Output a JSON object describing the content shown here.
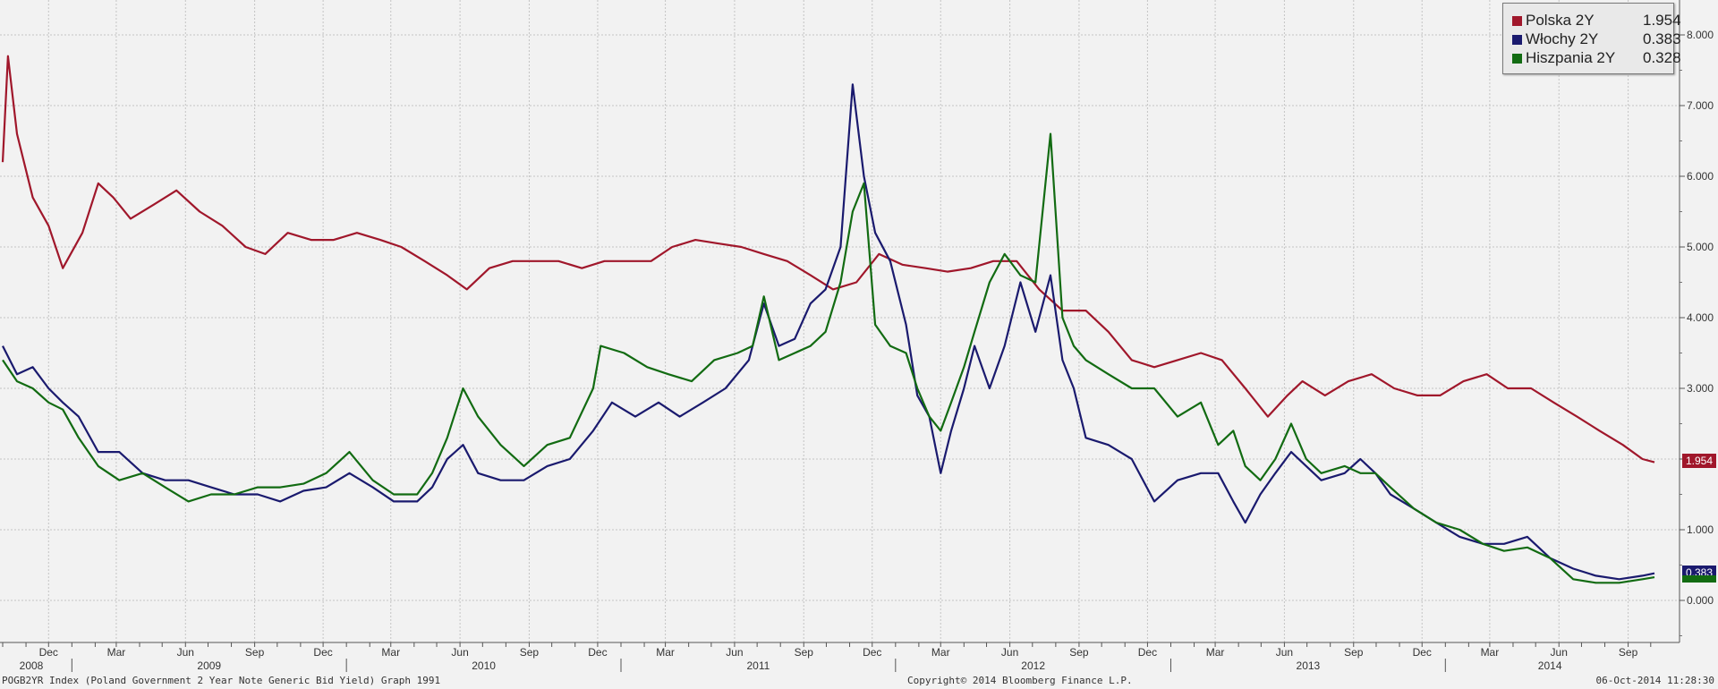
{
  "chart_data": {
    "type": "line",
    "ylim": [
      -0.6,
      8.3
    ],
    "y_ticks": [
      "0.000",
      "1.000",
      "2.000",
      "3.000",
      "4.000",
      "5.000",
      "6.000",
      "7.000",
      "8.000"
    ],
    "x_month_labels": [
      "Dec",
      "Mar",
      "Jun",
      "Sep",
      "Dec",
      "Mar",
      "Jun",
      "Sep",
      "Dec",
      "Mar",
      "Jun",
      "Sep",
      "Dec",
      "Mar",
      "Jun",
      "Sep",
      "Dec",
      "Mar",
      "Jun",
      "Sep",
      "Dec",
      "Mar",
      "Jun",
      "Sep"
    ],
    "x_year_labels": [
      "2008",
      "2009",
      "2010",
      "2011",
      "2012",
      "2013",
      "2014"
    ],
    "grid": true,
    "legend_position": "top-right",
    "series": [
      {
        "name": "Polska 2Y",
        "last": "1.954",
        "color": "#a0172b",
        "points": [
          [
            "2008-10-01",
            6.2
          ],
          [
            "2008-10-08",
            7.7
          ],
          [
            "2008-10-20",
            6.6
          ],
          [
            "2008-11-10",
            5.7
          ],
          [
            "2008-12-01",
            5.3
          ],
          [
            "2008-12-20",
            4.7
          ],
          [
            "2009-01-15",
            5.2
          ],
          [
            "2009-02-05",
            5.9
          ],
          [
            "2009-02-25",
            5.7
          ],
          [
            "2009-03-20",
            5.4
          ],
          [
            "2009-04-20",
            5.6
          ],
          [
            "2009-05-20",
            5.8
          ],
          [
            "2009-06-20",
            5.5
          ],
          [
            "2009-07-20",
            5.3
          ],
          [
            "2009-08-20",
            5.0
          ],
          [
            "2009-09-15",
            4.9
          ],
          [
            "2009-10-15",
            5.2
          ],
          [
            "2009-11-15",
            5.1
          ],
          [
            "2009-12-15",
            5.1
          ],
          [
            "2010-01-15",
            5.2
          ],
          [
            "2010-02-15",
            5.1
          ],
          [
            "2010-03-15",
            5.0
          ],
          [
            "2010-04-15",
            4.8
          ],
          [
            "2010-05-15",
            4.6
          ],
          [
            "2010-06-10",
            4.4
          ],
          [
            "2010-07-10",
            4.7
          ],
          [
            "2010-08-10",
            4.8
          ],
          [
            "2010-09-10",
            4.8
          ],
          [
            "2010-10-10",
            4.8
          ],
          [
            "2010-11-10",
            4.7
          ],
          [
            "2010-12-10",
            4.8
          ],
          [
            "2011-01-10",
            4.8
          ],
          [
            "2011-02-10",
            4.8
          ],
          [
            "2011-03-10",
            5.0
          ],
          [
            "2011-04-10",
            5.1
          ],
          [
            "2011-05-10",
            5.05
          ],
          [
            "2011-06-10",
            5.0
          ],
          [
            "2011-07-10",
            4.9
          ],
          [
            "2011-08-10",
            4.8
          ],
          [
            "2011-09-10",
            4.6
          ],
          [
            "2011-10-10",
            4.4
          ],
          [
            "2011-11-10",
            4.5
          ],
          [
            "2011-12-10",
            4.9
          ],
          [
            "2012-01-10",
            4.75
          ],
          [
            "2012-02-10",
            4.7
          ],
          [
            "2012-03-10",
            4.65
          ],
          [
            "2012-04-10",
            4.7
          ],
          [
            "2012-05-10",
            4.8
          ],
          [
            "2012-06-10",
            4.8
          ],
          [
            "2012-07-10",
            4.4
          ],
          [
            "2012-08-10",
            4.1
          ],
          [
            "2012-09-10",
            4.1
          ],
          [
            "2012-10-10",
            3.8
          ],
          [
            "2012-11-10",
            3.4
          ],
          [
            "2012-12-10",
            3.3
          ],
          [
            "2013-01-10",
            3.4
          ],
          [
            "2013-02-10",
            3.5
          ],
          [
            "2013-03-10",
            3.4
          ],
          [
            "2013-04-10",
            3.0
          ],
          [
            "2013-05-10",
            2.6
          ],
          [
            "2013-06-05",
            2.9
          ],
          [
            "2013-06-25",
            3.1
          ],
          [
            "2013-07-25",
            2.9
          ],
          [
            "2013-08-25",
            3.1
          ],
          [
            "2013-09-25",
            3.2
          ],
          [
            "2013-10-25",
            3.0
          ],
          [
            "2013-11-25",
            2.9
          ],
          [
            "2013-12-25",
            2.9
          ],
          [
            "2014-01-25",
            3.1
          ],
          [
            "2014-02-25",
            3.2
          ],
          [
            "2014-03-25",
            3.0
          ],
          [
            "2014-04-25",
            3.0
          ],
          [
            "2014-05-25",
            2.8
          ],
          [
            "2014-06-25",
            2.6
          ],
          [
            "2014-07-25",
            2.4
          ],
          [
            "2014-08-25",
            2.2
          ],
          [
            "2014-09-20",
            2.0
          ],
          [
            "2014-10-06",
            1.954
          ]
        ]
      },
      {
        "name": "Włochy 2Y",
        "last": "0.383",
        "color": "#1a1a6e",
        "points": [
          [
            "2008-10-01",
            3.6
          ],
          [
            "2008-10-20",
            3.2
          ],
          [
            "2008-11-10",
            3.3
          ],
          [
            "2008-12-01",
            3.0
          ],
          [
            "2008-12-20",
            2.8
          ],
          [
            "2009-01-10",
            2.6
          ],
          [
            "2009-02-05",
            2.1
          ],
          [
            "2009-03-05",
            2.1
          ],
          [
            "2009-04-05",
            1.8
          ],
          [
            "2009-05-05",
            1.7
          ],
          [
            "2009-06-05",
            1.7
          ],
          [
            "2009-07-05",
            1.6
          ],
          [
            "2009-08-05",
            1.5
          ],
          [
            "2009-09-05",
            1.5
          ],
          [
            "2009-10-05",
            1.4
          ],
          [
            "2009-11-05",
            1.55
          ],
          [
            "2009-12-05",
            1.6
          ],
          [
            "2010-01-05",
            1.8
          ],
          [
            "2010-02-05",
            1.6
          ],
          [
            "2010-03-05",
            1.4
          ],
          [
            "2010-04-05",
            1.4
          ],
          [
            "2010-04-25",
            1.6
          ],
          [
            "2010-05-15",
            2.0
          ],
          [
            "2010-06-05",
            2.2
          ],
          [
            "2010-06-25",
            1.8
          ],
          [
            "2010-07-25",
            1.7
          ],
          [
            "2010-08-25",
            1.7
          ],
          [
            "2010-09-25",
            1.9
          ],
          [
            "2010-10-25",
            2.0
          ],
          [
            "2010-11-25",
            2.4
          ],
          [
            "2010-12-20",
            2.8
          ],
          [
            "2011-01-20",
            2.6
          ],
          [
            "2011-02-20",
            2.8
          ],
          [
            "2011-03-20",
            2.6
          ],
          [
            "2011-04-20",
            2.8
          ],
          [
            "2011-05-20",
            3.0
          ],
          [
            "2011-06-20",
            3.4
          ],
          [
            "2011-07-10",
            4.2
          ],
          [
            "2011-07-30",
            3.6
          ],
          [
            "2011-08-20",
            3.7
          ],
          [
            "2011-09-10",
            4.2
          ],
          [
            "2011-09-30",
            4.4
          ],
          [
            "2011-10-20",
            5.0
          ],
          [
            "2011-11-05",
            7.3
          ],
          [
            "2011-11-20",
            6.0
          ],
          [
            "2011-12-05",
            5.2
          ],
          [
            "2011-12-25",
            4.8
          ],
          [
            "2012-01-15",
            3.9
          ],
          [
            "2012-01-30",
            2.9
          ],
          [
            "2012-02-15",
            2.6
          ],
          [
            "2012-03-01",
            1.8
          ],
          [
            "2012-03-15",
            2.4
          ],
          [
            "2012-04-01",
            3.0
          ],
          [
            "2012-04-15",
            3.6
          ],
          [
            "2012-05-05",
            3.0
          ],
          [
            "2012-05-25",
            3.6
          ],
          [
            "2012-06-15",
            4.5
          ],
          [
            "2012-07-05",
            3.8
          ],
          [
            "2012-07-25",
            4.6
          ],
          [
            "2012-08-10",
            3.4
          ],
          [
            "2012-08-25",
            3.0
          ],
          [
            "2012-09-10",
            2.3
          ],
          [
            "2012-10-10",
            2.2
          ],
          [
            "2012-11-10",
            2.0
          ],
          [
            "2012-12-10",
            1.4
          ],
          [
            "2013-01-10",
            1.7
          ],
          [
            "2013-02-10",
            1.8
          ],
          [
            "2013-03-05",
            1.8
          ],
          [
            "2013-03-25",
            1.4
          ],
          [
            "2013-04-10",
            1.1
          ],
          [
            "2013-04-30",
            1.5
          ],
          [
            "2013-05-20",
            1.8
          ],
          [
            "2013-06-10",
            2.1
          ],
          [
            "2013-06-30",
            1.9
          ],
          [
            "2013-07-20",
            1.7
          ],
          [
            "2013-08-20",
            1.8
          ],
          [
            "2013-09-10",
            2.0
          ],
          [
            "2013-09-30",
            1.8
          ],
          [
            "2013-10-20",
            1.5
          ],
          [
            "2013-11-20",
            1.3
          ],
          [
            "2013-12-20",
            1.1
          ],
          [
            "2014-01-20",
            0.9
          ],
          [
            "2014-02-20",
            0.8
          ],
          [
            "2014-03-20",
            0.8
          ],
          [
            "2014-04-20",
            0.9
          ],
          [
            "2014-05-20",
            0.6
          ],
          [
            "2014-06-20",
            0.45
          ],
          [
            "2014-07-20",
            0.35
          ],
          [
            "2014-08-20",
            0.3
          ],
          [
            "2014-09-20",
            0.35
          ],
          [
            "2014-10-06",
            0.383
          ]
        ]
      },
      {
        "name": "Hiszpania 2Y",
        "last": "0.328",
        "color": "#126b12",
        "points": [
          [
            "2008-10-01",
            3.4
          ],
          [
            "2008-10-20",
            3.1
          ],
          [
            "2008-11-10",
            3.0
          ],
          [
            "2008-12-01",
            2.8
          ],
          [
            "2008-12-20",
            2.7
          ],
          [
            "2009-01-10",
            2.3
          ],
          [
            "2009-02-05",
            1.9
          ],
          [
            "2009-03-05",
            1.7
          ],
          [
            "2009-04-05",
            1.8
          ],
          [
            "2009-05-05",
            1.6
          ],
          [
            "2009-06-05",
            1.4
          ],
          [
            "2009-07-05",
            1.5
          ],
          [
            "2009-08-05",
            1.5
          ],
          [
            "2009-09-05",
            1.6
          ],
          [
            "2009-10-05",
            1.6
          ],
          [
            "2009-11-05",
            1.65
          ],
          [
            "2009-12-05",
            1.8
          ],
          [
            "2010-01-05",
            2.1
          ],
          [
            "2010-02-05",
            1.7
          ],
          [
            "2010-03-05",
            1.5
          ],
          [
            "2010-04-05",
            1.5
          ],
          [
            "2010-04-25",
            1.8
          ],
          [
            "2010-05-15",
            2.3
          ],
          [
            "2010-06-05",
            3.0
          ],
          [
            "2010-06-25",
            2.6
          ],
          [
            "2010-07-25",
            2.2
          ],
          [
            "2010-08-25",
            1.9
          ],
          [
            "2010-09-25",
            2.2
          ],
          [
            "2010-10-25",
            2.3
          ],
          [
            "2010-11-25",
            3.0
          ],
          [
            "2010-12-05",
            3.6
          ],
          [
            "2011-01-05",
            3.5
          ],
          [
            "2011-02-05",
            3.3
          ],
          [
            "2011-03-05",
            3.2
          ],
          [
            "2011-04-05",
            3.1
          ],
          [
            "2011-05-05",
            3.4
          ],
          [
            "2011-06-05",
            3.5
          ],
          [
            "2011-06-25",
            3.6
          ],
          [
            "2011-07-10",
            4.3
          ],
          [
            "2011-07-30",
            3.4
          ],
          [
            "2011-08-20",
            3.5
          ],
          [
            "2011-09-10",
            3.6
          ],
          [
            "2011-09-30",
            3.8
          ],
          [
            "2011-10-20",
            4.5
          ],
          [
            "2011-11-05",
            5.5
          ],
          [
            "2011-11-20",
            5.9
          ],
          [
            "2011-12-05",
            3.9
          ],
          [
            "2011-12-25",
            3.6
          ],
          [
            "2012-01-15",
            3.5
          ],
          [
            "2012-01-30",
            3.0
          ],
          [
            "2012-02-15",
            2.6
          ],
          [
            "2012-03-01",
            2.4
          ],
          [
            "2012-03-15",
            2.8
          ],
          [
            "2012-04-01",
            3.3
          ],
          [
            "2012-04-15",
            3.8
          ],
          [
            "2012-05-05",
            4.5
          ],
          [
            "2012-05-25",
            4.9
          ],
          [
            "2012-06-15",
            4.6
          ],
          [
            "2012-07-05",
            4.5
          ],
          [
            "2012-07-25",
            6.6
          ],
          [
            "2012-08-10",
            4.0
          ],
          [
            "2012-08-25",
            3.6
          ],
          [
            "2012-09-10",
            3.4
          ],
          [
            "2012-10-10",
            3.2
          ],
          [
            "2012-11-10",
            3.0
          ],
          [
            "2012-12-10",
            3.0
          ],
          [
            "2013-01-10",
            2.6
          ],
          [
            "2013-02-10",
            2.8
          ],
          [
            "2013-03-05",
            2.2
          ],
          [
            "2013-03-25",
            2.4
          ],
          [
            "2013-04-10",
            1.9
          ],
          [
            "2013-04-30",
            1.7
          ],
          [
            "2013-05-20",
            2.0
          ],
          [
            "2013-06-10",
            2.5
          ],
          [
            "2013-06-30",
            2.0
          ],
          [
            "2013-07-20",
            1.8
          ],
          [
            "2013-08-20",
            1.9
          ],
          [
            "2013-09-10",
            1.8
          ],
          [
            "2013-09-30",
            1.8
          ],
          [
            "2013-10-20",
            1.6
          ],
          [
            "2013-11-20",
            1.3
          ],
          [
            "2013-12-20",
            1.1
          ],
          [
            "2014-01-20",
            1.0
          ],
          [
            "2014-02-20",
            0.8
          ],
          [
            "2014-03-20",
            0.7
          ],
          [
            "2014-04-20",
            0.75
          ],
          [
            "2014-05-20",
            0.6
          ],
          [
            "2014-06-20",
            0.3
          ],
          [
            "2014-07-20",
            0.25
          ],
          [
            "2014-08-20",
            0.25
          ],
          [
            "2014-09-20",
            0.3
          ],
          [
            "2014-10-06",
            0.328
          ]
        ]
      }
    ]
  },
  "footer": {
    "left": "POGB2YR Index (Poland Government 2 Year Note Generic Bid Yield) Graph 1991",
    "center": "Copyright© 2014 Bloomberg Finance L.P.",
    "right": "06-Oct-2014 11:28:30"
  }
}
